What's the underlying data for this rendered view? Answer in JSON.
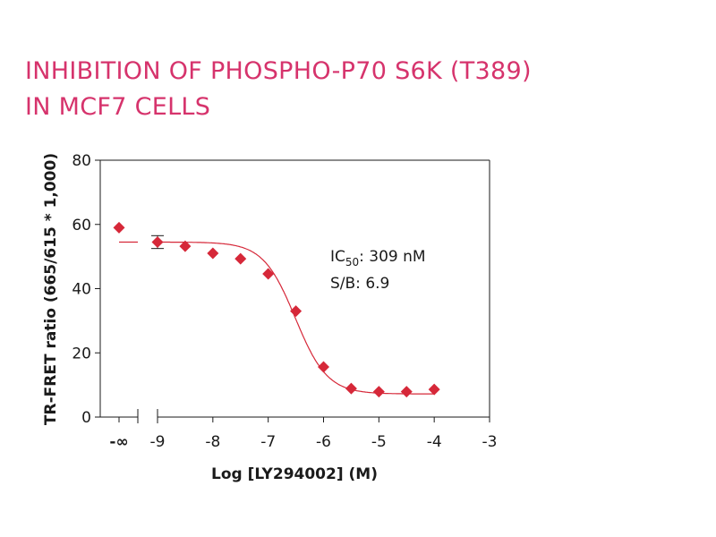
{
  "title": {
    "line1": "INHIBITION OF PHOSPHO-P70 S6K (T389)",
    "line2": "IN MCF7 CELLS",
    "color": "#d6336c"
  },
  "chart_data": {
    "type": "scatter",
    "title": "INHIBITION OF PHOSPHO-P70 S6K (T389) IN MCF7 CELLS",
    "xlabel": "Log [LY294002] (M)",
    "ylabel": "TR-FRET ratio (665/615 * 1,000)",
    "xlim": [
      -9,
      -3
    ],
    "ylim": [
      0,
      80
    ],
    "x_ticks": [
      {
        "v": "-inf",
        "label": "-∞"
      },
      {
        "v": -9,
        "label": "-9"
      },
      {
        "v": -8,
        "label": "-8"
      },
      {
        "v": -7,
        "label": "-7"
      },
      {
        "v": -6,
        "label": "-6"
      },
      {
        "v": -5,
        "label": "-5"
      },
      {
        "v": -4,
        "label": "-4"
      },
      {
        "v": -3,
        "label": "-3"
      }
    ],
    "y_ticks": [
      0,
      20,
      40,
      60,
      80
    ],
    "marker_color": "#d62839",
    "curve_color": "#d62839",
    "control_point": {
      "x": "-inf",
      "y": 59
    },
    "points": [
      {
        "x": -9.0,
        "y": 54.5,
        "err": 2.0
      },
      {
        "x": -8.5,
        "y": 53.2
      },
      {
        "x": -8.0,
        "y": 51.0
      },
      {
        "x": -7.5,
        "y": 49.3
      },
      {
        "x": -7.0,
        "y": 44.6
      },
      {
        "x": -6.5,
        "y": 33.0
      },
      {
        "x": -6.0,
        "y": 15.6
      },
      {
        "x": -5.5,
        "y": 8.9
      },
      {
        "x": -5.0,
        "y": 7.9
      },
      {
        "x": -4.5,
        "y": 7.9
      },
      {
        "x": -4.0,
        "y": 8.6
      }
    ],
    "fit": {
      "top": 54.5,
      "bottom": 7.2,
      "log_ic50": -6.51,
      "hill": 1.5
    },
    "annotations": {
      "ic_prefix": "IC",
      "ic_sub": "50",
      "ic_value": ": 309 nM",
      "sb": "S/B: 6.9"
    },
    "grid": false,
    "legend": "none"
  }
}
